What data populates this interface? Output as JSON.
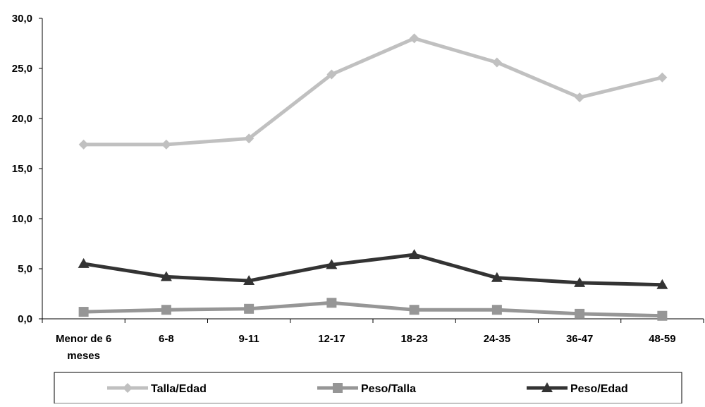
{
  "chart_data": {
    "type": "line",
    "title": "",
    "xlabel": "",
    "ylabel": "",
    "categories": [
      [
        "Menor de 6",
        "meses"
      ],
      [
        "6-8"
      ],
      [
        "9-11"
      ],
      [
        "12-17"
      ],
      [
        "18-23"
      ],
      [
        "24-35"
      ],
      [
        "36-47"
      ],
      [
        "48-59"
      ]
    ],
    "ylim": [
      0,
      30
    ],
    "yticks": [
      0,
      5,
      10,
      15,
      20,
      25,
      30
    ],
    "ytick_labels": [
      "0,0",
      "5,0",
      "10,0",
      "15,0",
      "20,0",
      "25,0",
      "30,0"
    ],
    "grid": false,
    "legend_position": "bottom",
    "series": [
      {
        "name": "Talla/Edad",
        "color": "#c0c0c0",
        "marker": "diamond",
        "values": [
          17.4,
          17.4,
          18.0,
          24.4,
          28.0,
          25.6,
          22.1,
          24.1
        ]
      },
      {
        "name": "Peso/Talla",
        "color": "#969696",
        "marker": "square",
        "values": [
          0.7,
          0.9,
          1.0,
          1.6,
          0.9,
          0.9,
          0.5,
          0.3
        ]
      },
      {
        "name": "Peso/Edad",
        "color": "#333333",
        "marker": "triangle",
        "values": [
          5.5,
          4.2,
          3.8,
          5.4,
          6.4,
          4.1,
          3.6,
          3.4
        ]
      }
    ]
  }
}
